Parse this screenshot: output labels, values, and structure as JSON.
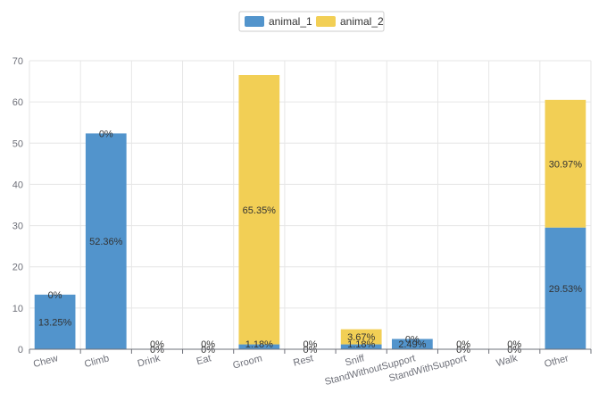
{
  "chart_data": {
    "type": "bar",
    "stacked": true,
    "categories": [
      "Chew",
      "Climb",
      "Drink",
      "Eat",
      "Groom",
      "Rest",
      "Sniff",
      "StandWithoutSupport",
      "StandWithSupport",
      "Walk",
      "Other"
    ],
    "series": [
      {
        "name": "animal_1",
        "color": "#5294cc",
        "values": [
          13.25,
          52.36,
          0,
          0,
          1.18,
          0,
          1.18,
          2.49,
          0,
          0,
          29.53
        ],
        "labels": [
          "13.25%",
          "52.36%",
          "0%",
          "0%",
          "1.18%",
          "0%",
          "1.18%",
          "2.49%",
          "0%",
          "0%",
          "29.53%"
        ]
      },
      {
        "name": "animal_2",
        "color": "#f2cf55",
        "values": [
          0,
          0,
          0,
          0,
          65.35,
          0,
          3.67,
          0,
          0,
          0,
          30.97
        ],
        "labels": [
          "0%",
          "0%",
          "0%",
          "0%",
          "65.35%",
          "0%",
          "3.67%",
          "0%",
          "0%",
          "0%",
          "30.97%"
        ]
      }
    ],
    "yticks": [
      "0",
      "10",
      "20",
      "30",
      "40",
      "50",
      "60",
      "70"
    ],
    "ylim": [
      0,
      70
    ],
    "grid": true,
    "legend_position": "top-center"
  }
}
